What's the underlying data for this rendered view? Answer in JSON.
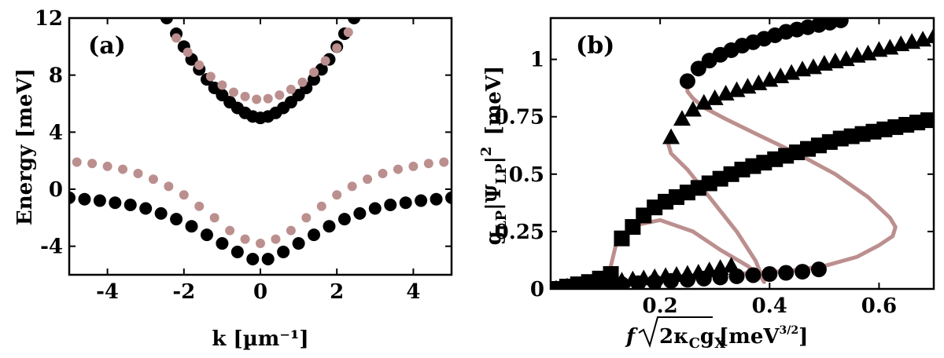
{
  "colors": {
    "ink": "#000000",
    "mauve": "#bc8f8f"
  },
  "chart_data": [
    {
      "type": "scatter",
      "panel_label": "(a)",
      "xlabel": "k [µm⁻¹]",
      "ylabel": "Energy [meV]",
      "xlim": [
        -5,
        5
      ],
      "ylim": [
        -6,
        12
      ],
      "xticks": [
        -4,
        -2,
        0,
        2,
        4
      ],
      "xtick_labels": [
        "-4",
        "-2",
        "0",
        "2",
        "4"
      ],
      "yticks": [
        -4,
        0,
        4,
        8,
        12
      ],
      "ytick_labels": [
        "-4",
        "0",
        "4",
        "8",
        "12"
      ],
      "series": [
        {
          "name": "lower-branch-black",
          "marker": "circle",
          "color": "#000000",
          "size": "large",
          "x": [
            -5.0,
            -4.6,
            -4.2,
            -3.8,
            -3.4,
            -3.0,
            -2.6,
            -2.2,
            -1.8,
            -1.4,
            -1.0,
            -0.6,
            -0.2,
            0.2,
            0.6,
            1.0,
            1.4,
            1.8,
            2.2,
            2.6,
            3.0,
            3.4,
            3.8,
            4.2,
            4.6,
            5.0
          ],
          "y": [
            -0.6,
            -0.7,
            -0.8,
            -0.95,
            -1.1,
            -1.35,
            -1.7,
            -2.1,
            -2.6,
            -3.2,
            -3.8,
            -4.4,
            -4.9,
            -4.9,
            -4.4,
            -3.8,
            -3.2,
            -2.6,
            -2.1,
            -1.7,
            -1.35,
            -1.1,
            -0.95,
            -0.8,
            -0.7,
            -0.6
          ]
        },
        {
          "name": "upper-branch-black",
          "marker": "circle",
          "color": "#000000",
          "size": "large",
          "x": [
            -2.45,
            -2.2,
            -2.0,
            -1.8,
            -1.6,
            -1.4,
            -1.2,
            -1.0,
            -0.8,
            -0.6,
            -0.4,
            -0.2,
            0.0,
            0.2,
            0.4,
            0.6,
            0.8,
            1.0,
            1.2,
            1.4,
            1.6,
            1.8,
            2.0,
            2.2,
            2.45
          ],
          "y": [
            12.0,
            10.9,
            10.0,
            9.1,
            8.4,
            7.7,
            7.1,
            6.6,
            6.1,
            5.7,
            5.35,
            5.1,
            5.0,
            5.1,
            5.35,
            5.7,
            6.1,
            6.6,
            7.1,
            7.7,
            8.4,
            9.1,
            10.0,
            10.9,
            12.0
          ]
        },
        {
          "name": "lower-branch-mauve",
          "marker": "circle",
          "color": "#bc8f8f",
          "size": "small",
          "x": [
            -4.8,
            -4.4,
            -4.0,
            -3.6,
            -3.2,
            -2.8,
            -2.4,
            -2.0,
            -1.6,
            -1.2,
            -0.8,
            -0.4,
            0.0,
            0.4,
            0.8,
            1.2,
            1.6,
            2.0,
            2.4,
            2.8,
            3.2,
            3.6,
            4.0,
            4.4,
            4.8
          ],
          "y": [
            1.9,
            1.8,
            1.6,
            1.4,
            1.1,
            0.7,
            0.2,
            -0.4,
            -1.2,
            -2.0,
            -2.9,
            -3.5,
            -3.8,
            -3.5,
            -2.9,
            -2.0,
            -1.2,
            -0.4,
            0.2,
            0.7,
            1.1,
            1.4,
            1.6,
            1.8,
            1.9
          ]
        },
        {
          "name": "upper-branch-mauve",
          "marker": "circle",
          "color": "#bc8f8f",
          "size": "small",
          "x": [
            -2.2,
            -1.9,
            -1.6,
            -1.3,
            -1.0,
            -0.7,
            -0.4,
            -0.1,
            0.2,
            0.5,
            0.8,
            1.1,
            1.4,
            1.7,
            2.0,
            2.3
          ],
          "y": [
            10.6,
            9.6,
            8.7,
            7.9,
            7.3,
            6.8,
            6.5,
            6.3,
            6.35,
            6.6,
            7.0,
            7.5,
            8.2,
            9.0,
            9.9,
            11.0
          ]
        }
      ]
    },
    {
      "type": "scatter",
      "panel_label": "(b)",
      "xlabel_pre": "f",
      "xlabel_main": "2κ",
      "xlabel_sub1": "C",
      "xlabel_mid": "g",
      "xlabel_sub2": "X",
      "xlabel_unit": "[meV",
      "xlabel_sup": "3/2",
      "xlabel_end": "]",
      "ylabel_g": "g",
      "ylabel_sub1": "LP",
      "ylabel_mid": "|Ψ",
      "ylabel_sub2": "LP",
      "ylabel_bar": "|",
      "ylabel_sup": "2",
      "ylabel_unit": "[meV]",
      "xlim": [
        0.0,
        0.7
      ],
      "ylim": [
        0.0,
        1.18
      ],
      "xticks": [
        0.2,
        0.4,
        0.6
      ],
      "xtick_labels": [
        "0.2",
        "0.4",
        "0.6"
      ],
      "yticks": [
        0.0,
        0.25,
        0.5,
        0.75,
        1.0
      ],
      "ytick_labels": [
        "0",
        "0.25",
        "0.5",
        "0.75",
        "1"
      ],
      "series": [
        {
          "name": "squares-stable",
          "marker": "square",
          "color": "#000000",
          "x": [
            0.01,
            0.03,
            0.05,
            0.07,
            0.09,
            0.11,
            0.13,
            0.15,
            0.17,
            0.19,
            0.21,
            0.23,
            0.25,
            0.27,
            0.29,
            0.31,
            0.33,
            0.35,
            0.37,
            0.39,
            0.41,
            0.43,
            0.45,
            0.47,
            0.49,
            0.51,
            0.53,
            0.55,
            0.57,
            0.59,
            0.61,
            0.63,
            0.65,
            0.67,
            0.69
          ],
          "y": [
            0.0,
            0.01,
            0.02,
            0.03,
            0.045,
            0.065,
            0.22,
            0.27,
            0.32,
            0.355,
            0.38,
            0.4,
            0.42,
            0.44,
            0.46,
            0.48,
            0.5,
            0.52,
            0.535,
            0.55,
            0.565,
            0.58,
            0.595,
            0.61,
            0.625,
            0.64,
            0.655,
            0.665,
            0.675,
            0.685,
            0.695,
            0.705,
            0.715,
            0.725,
            0.735
          ]
        },
        {
          "name": "triangles-stable",
          "marker": "triangle",
          "color": "#000000",
          "x": [
            0.01,
            0.03,
            0.05,
            0.07,
            0.09,
            0.11,
            0.13,
            0.15,
            0.17,
            0.19,
            0.21,
            0.23,
            0.25,
            0.27,
            0.29,
            0.31,
            0.33,
            0.22,
            0.24,
            0.26,
            0.28,
            0.3,
            0.32,
            0.34,
            0.36,
            0.38,
            0.4,
            0.42,
            0.44,
            0.46,
            0.48,
            0.5,
            0.52,
            0.54,
            0.56,
            0.58,
            0.6,
            0.62,
            0.64,
            0.66,
            0.68,
            0.7
          ],
          "y": [
            0.0,
            0.01,
            0.015,
            0.02,
            0.025,
            0.03,
            0.035,
            0.04,
            0.045,
            0.05,
            0.055,
            0.06,
            0.065,
            0.07,
            0.08,
            0.09,
            0.1,
            0.66,
            0.74,
            0.78,
            0.81,
            0.83,
            0.85,
            0.865,
            0.88,
            0.895,
            0.91,
            0.925,
            0.94,
            0.955,
            0.965,
            0.98,
            0.99,
            1.0,
            1.015,
            1.025,
            1.04,
            1.05,
            1.065,
            1.075,
            1.085,
            1.1
          ]
        },
        {
          "name": "circles-stable",
          "marker": "circle",
          "color": "#000000",
          "x": [
            0.01,
            0.04,
            0.07,
            0.1,
            0.13,
            0.16,
            0.19,
            0.22,
            0.25,
            0.28,
            0.31,
            0.34,
            0.37,
            0.4,
            0.43,
            0.46,
            0.49,
            0.25,
            0.27,
            0.29,
            0.31,
            0.33,
            0.35,
            0.37,
            0.39,
            0.41,
            0.43,
            0.45,
            0.47,
            0.49,
            0.51,
            0.53
          ],
          "y": [
            0.0,
            0.005,
            0.01,
            0.015,
            0.02,
            0.025,
            0.03,
            0.035,
            0.04,
            0.045,
            0.05,
            0.055,
            0.06,
            0.065,
            0.07,
            0.075,
            0.085,
            0.905,
            0.96,
            0.995,
            1.02,
            1.04,
            1.06,
            1.075,
            1.09,
            1.105,
            1.12,
            1.13,
            1.14,
            1.15,
            1.16,
            1.17
          ]
        },
        {
          "name": "curve-mauve-1",
          "marker": "line",
          "color": "#bc8f8f",
          "x": [
            0.11,
            0.115,
            0.12,
            0.13,
            0.16,
            0.2,
            0.26,
            0.31,
            0.36,
            0.385,
            0.39,
            0.375,
            0.34,
            0.29,
            0.25,
            0.22,
            0.215,
            0.22
          ],
          "y": [
            0.1,
            0.15,
            0.2,
            0.23,
            0.28,
            0.3,
            0.25,
            0.17,
            0.1,
            0.05,
            0.03,
            0.12,
            0.25,
            0.4,
            0.52,
            0.59,
            0.63,
            0.66
          ]
        },
        {
          "name": "curve-mauve-2",
          "marker": "line",
          "color": "#bc8f8f",
          "x": [
            0.33,
            0.38,
            0.44,
            0.5,
            0.56,
            0.6,
            0.625,
            0.63,
            0.62,
            0.58,
            0.52,
            0.45,
            0.38,
            0.32,
            0.28,
            0.26,
            0.25,
            0.25
          ],
          "y": [
            0.065,
            0.07,
            0.08,
            0.1,
            0.14,
            0.19,
            0.23,
            0.27,
            0.31,
            0.4,
            0.5,
            0.59,
            0.67,
            0.74,
            0.79,
            0.83,
            0.86,
            0.905
          ]
        }
      ]
    }
  ]
}
